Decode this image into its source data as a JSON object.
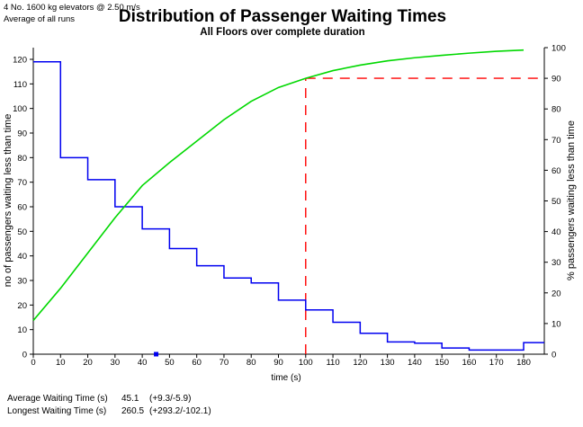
{
  "header": {
    "line1": "4 No. 1600 kg elevators @ 2.50 m/s",
    "line2": "Average of all runs"
  },
  "title": "Distribution of Passenger Waiting Times",
  "subtitle": "All Floors over complete duration",
  "colors": {
    "histogram": "#0000f0",
    "cumulative": "#00d800",
    "crosshair": "#ff0000",
    "axis": "#000000"
  },
  "chart_data": {
    "type": "line",
    "xlabel": "time (s)",
    "left_ylabel": "no of passengers waiting less than time",
    "right_ylabel": "% passengers waiting less than time",
    "xlim": [
      0,
      180
    ],
    "left_ylim": [
      0,
      120
    ],
    "right_ylim": [
      0,
      100
    ],
    "x_ticks": [
      0,
      10,
      20,
      30,
      40,
      50,
      60,
      70,
      80,
      90,
      100,
      110,
      120,
      130,
      140,
      150,
      160,
      170,
      180
    ],
    "left_ticks": [
      0,
      10,
      20,
      30,
      40,
      50,
      60,
      70,
      80,
      90,
      100,
      110,
      120
    ],
    "right_ticks": [
      0,
      10,
      20,
      30,
      40,
      50,
      60,
      70,
      80,
      90,
      100
    ],
    "grid": false,
    "series": [
      {
        "name": "passengers waiting (step histogram, 10 s bins)",
        "axis": "left",
        "style": "step",
        "bin_width_s": 10,
        "values": [
          119,
          80,
          71,
          60,
          51,
          43,
          36,
          31,
          29,
          22,
          18,
          13,
          8.5,
          5,
          4.5,
          2.5,
          1.7,
          1.7
        ],
        "overflow_value": 4.7
      },
      {
        "name": "% passengers waiting less than time (cumulative)",
        "axis": "right",
        "style": "line",
        "x": [
          0,
          10,
          20,
          30,
          40,
          50,
          60,
          70,
          80,
          90,
          100,
          110,
          120,
          130,
          140,
          150,
          160,
          170,
          180
        ],
        "values": [
          11,
          21.5,
          33,
          44.5,
          55,
          62.5,
          69.5,
          76.5,
          82.5,
          87,
          90,
          92.5,
          94.3,
          95.7,
          96.7,
          97.5,
          98.2,
          98.8,
          99.2
        ]
      }
    ],
    "annotations": {
      "crosshair_time_s": 100,
      "crosshair_percent": 90,
      "average_marker_time_s": 45.1
    }
  },
  "footer": {
    "rows": [
      {
        "label": "Average Waiting Time (s)",
        "value": "45.1",
        "range": "(+9.3/-5.9)"
      },
      {
        "label": "Longest Waiting Time (s)",
        "value": "260.5",
        "range": "(+293.2/-102.1)"
      }
    ]
  }
}
